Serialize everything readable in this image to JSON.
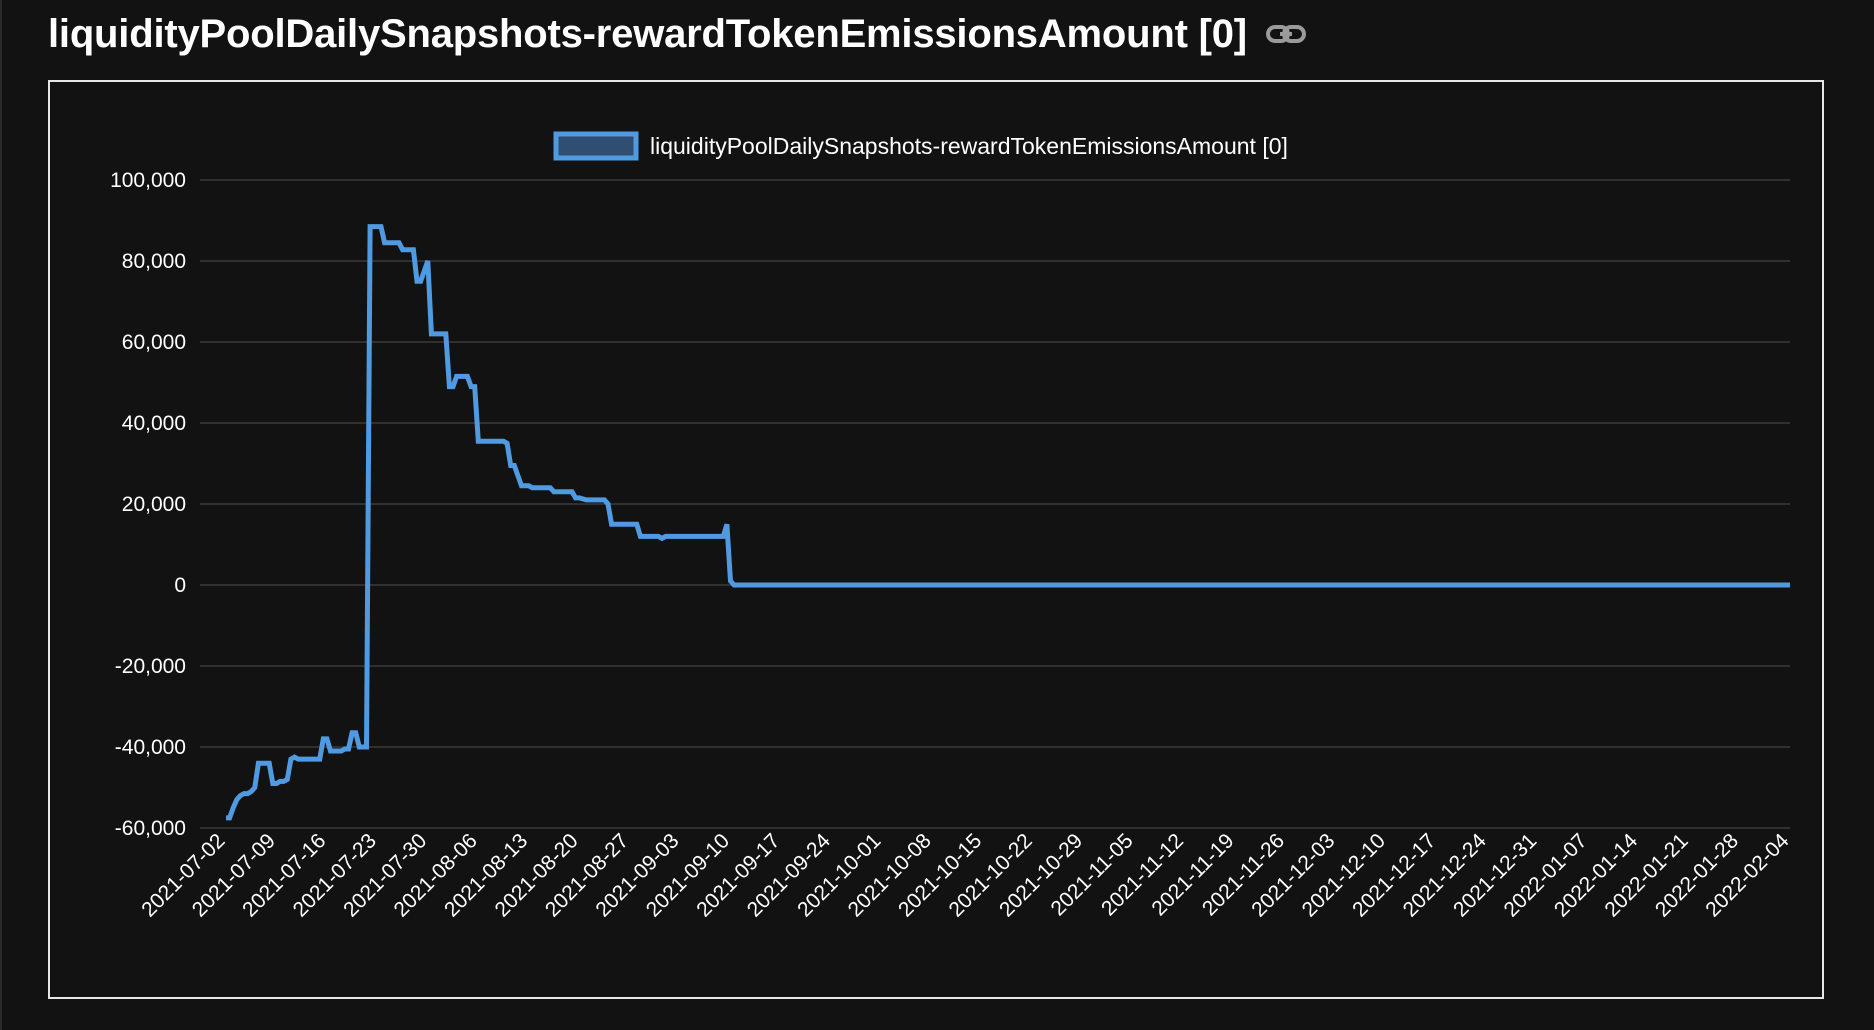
{
  "page": {
    "title": "liquidityPoolDailySnapshots-rewardTokenEmissionsAmount [0]",
    "link_icon": "link-icon"
  },
  "colors": {
    "background": "#121212",
    "line": "#4f9ae0",
    "legend_fill": "#2f4e72",
    "grid": "#3a3a3a",
    "text": "#ffffff"
  },
  "chart_data": {
    "type": "line",
    "title": "",
    "xlabel": "",
    "ylabel": "",
    "legend": {
      "position": "top-center",
      "label": "liquidityPoolDailySnapshots-rewardTokenEmissionsAmount [0]"
    },
    "grid": true,
    "ylim": [
      -60000,
      100000
    ],
    "y_ticks": [
      100000,
      80000,
      60000,
      40000,
      20000,
      0,
      -20000,
      -40000,
      -60000
    ],
    "y_tick_labels": [
      "100,000",
      "80,000",
      "60,000",
      "40,000",
      "20,000",
      "0",
      "-20,000",
      "-40,000",
      "-60,000"
    ],
    "x_start": "2021-07-02",
    "x_end": "2022-02-04",
    "x_ticks": [
      "2021-07-02",
      "2021-07-09",
      "2021-07-16",
      "2021-07-23",
      "2021-07-30",
      "2021-08-06",
      "2021-08-13",
      "2021-08-20",
      "2021-08-27",
      "2021-09-03",
      "2021-09-10",
      "2021-09-17",
      "2021-09-24",
      "2021-10-01",
      "2021-10-08",
      "2021-10-15",
      "2021-10-22",
      "2021-10-29",
      "2021-11-05",
      "2021-11-12",
      "2021-11-19",
      "2021-11-26",
      "2021-12-03",
      "2021-12-10",
      "2021-12-17",
      "2021-12-24",
      "2021-12-31",
      "2022-01-07",
      "2022-01-14",
      "2022-01-21",
      "2022-01-28",
      "2022-02-04"
    ],
    "series": [
      {
        "name": "liquidityPoolDailySnapshots-rewardTokenEmissionsAmount [0]",
        "points": [
          [
            0,
            -57500
          ],
          [
            0.5,
            -57500
          ],
          [
            1,
            -55000
          ],
          [
            1.5,
            -53000
          ],
          [
            2,
            -52000
          ],
          [
            2.5,
            -51500
          ],
          [
            3,
            -51500
          ],
          [
            3.5,
            -51000
          ],
          [
            4,
            -50000
          ],
          [
            4.5,
            -44000
          ],
          [
            5,
            -44000
          ],
          [
            5.5,
            -44000
          ],
          [
            6,
            -44000
          ],
          [
            6.5,
            -49000
          ],
          [
            7,
            -49000
          ],
          [
            7.5,
            -48500
          ],
          [
            8,
            -48500
          ],
          [
            8.5,
            -48000
          ],
          [
            9,
            -43000
          ],
          [
            9.5,
            -42500
          ],
          [
            10,
            -43000
          ],
          [
            10.5,
            -43000
          ],
          [
            11,
            -43000
          ],
          [
            12,
            -43000
          ],
          [
            13,
            -43000
          ],
          [
            13.5,
            -38000
          ],
          [
            14,
            -38000
          ],
          [
            14.5,
            -41000
          ],
          [
            15,
            -41000
          ],
          [
            16,
            -41000
          ],
          [
            16.5,
            -40500
          ],
          [
            17,
            -40500
          ],
          [
            17.5,
            -36500
          ],
          [
            18,
            -36500
          ],
          [
            18.5,
            -40000
          ],
          [
            19,
            -40000
          ],
          [
            19.5,
            -40000
          ],
          [
            20,
            88500
          ],
          [
            21,
            88500
          ],
          [
            21.5,
            88500
          ],
          [
            22,
            84500
          ],
          [
            23,
            84500
          ],
          [
            24,
            84500
          ],
          [
            24.5,
            82800
          ],
          [
            25,
            82800
          ],
          [
            26,
            82800
          ],
          [
            26.5,
            75000
          ],
          [
            27,
            75000
          ],
          [
            28,
            80000
          ],
          [
            28.5,
            62000
          ],
          [
            29,
            62000
          ],
          [
            30,
            62000
          ],
          [
            30.5,
            62000
          ],
          [
            31,
            49000
          ],
          [
            31.5,
            49000
          ],
          [
            32,
            51500
          ],
          [
            33,
            51500
          ],
          [
            33.5,
            51500
          ],
          [
            34,
            49000
          ],
          [
            34.5,
            49000
          ],
          [
            35,
            35500
          ],
          [
            36,
            35500
          ],
          [
            37,
            35500
          ],
          [
            38,
            35500
          ],
          [
            38.5,
            35500
          ],
          [
            39,
            35000
          ],
          [
            39.5,
            29500
          ],
          [
            40,
            29500
          ],
          [
            41,
            24500
          ],
          [
            42,
            24500
          ],
          [
            42.5,
            24000
          ],
          [
            43,
            24000
          ],
          [
            44,
            24000
          ],
          [
            45,
            24000
          ],
          [
            45.5,
            23000
          ],
          [
            46,
            23000
          ],
          [
            47,
            23000
          ],
          [
            48,
            23000
          ],
          [
            48.5,
            21500
          ],
          [
            49,
            21500
          ],
          [
            50,
            21000
          ],
          [
            51,
            21000
          ],
          [
            52,
            21000
          ],
          [
            52.5,
            21000
          ],
          [
            53,
            20000
          ],
          [
            53.5,
            15000
          ],
          [
            54,
            15000
          ],
          [
            55,
            15000
          ],
          [
            56,
            15000
          ],
          [
            57,
            15000
          ],
          [
            57.5,
            12000
          ],
          [
            58,
            12000
          ],
          [
            59,
            12000
          ],
          [
            60,
            12000
          ],
          [
            60.5,
            11500
          ],
          [
            61,
            12000
          ],
          [
            62,
            12000
          ],
          [
            63,
            12000
          ],
          [
            64,
            12000
          ],
          [
            65,
            12000
          ],
          [
            66,
            12000
          ],
          [
            67,
            12000
          ],
          [
            68,
            12000
          ],
          [
            69,
            12000
          ],
          [
            69.5,
            15000
          ],
          [
            70,
            1000
          ],
          [
            70.5,
            0
          ],
          [
            80,
            0
          ],
          [
            100,
            0
          ],
          [
            130,
            0
          ],
          [
            160,
            0
          ],
          [
            190,
            0
          ],
          [
            217,
            0
          ]
        ]
      }
    ]
  }
}
